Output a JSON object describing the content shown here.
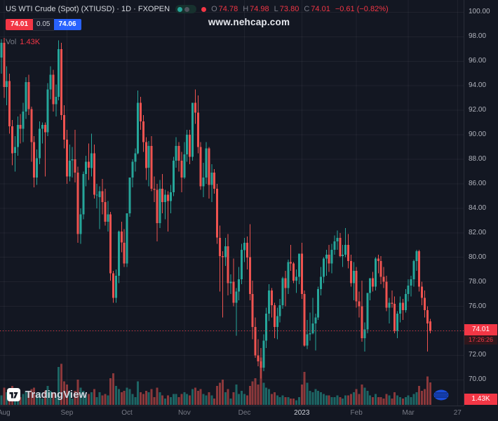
{
  "header": {
    "symbol_title": "US WTI Crude (Spot) (XTIUSD) · 1D · FXOPEN",
    "ohlc": [
      {
        "label": "O",
        "value": "74.78"
      },
      {
        "label": "H",
        "value": "74.98"
      },
      {
        "label": "L",
        "value": "73.80"
      },
      {
        "label": "C",
        "value": "74.01"
      }
    ],
    "change": "−0.61 (−0.82%)",
    "bid": "74.01",
    "spread": "0.05",
    "ask": "74.06",
    "vol_label": "Vol",
    "vol_value": "1.43K"
  },
  "watermark": "www.nehcap.com",
  "logo": {
    "text": "TradingView"
  },
  "badges": {
    "price": "74.01",
    "countdown": "17:26:26",
    "volume": "1.43K"
  },
  "colors": {
    "background": "#131722",
    "up": "#26a69a",
    "down": "#ef5350",
    "down_strong": "#f23645",
    "blue": "#2962ff",
    "axis_text": "#b0b3bc",
    "muted_text": "#787b86",
    "grid": "rgba(255,255,255,0.05)"
  },
  "chart_data": {
    "type": "candlestick+volume",
    "title": "US WTI Crude (Spot)",
    "symbol": "XTIUSD",
    "timeframe": "1D",
    "exchange": "FXOPEN",
    "last_price": 74.01,
    "last_volume_k": 1.43,
    "ylim": [
      67.9,
      101.0
    ],
    "x_slots": 170,
    "vol_max": 3.2,
    "y_gridlines": [
      {
        "v": 100,
        "t": "100.00"
      },
      {
        "v": 98,
        "t": "98.00"
      },
      {
        "v": 96,
        "t": "96.00"
      },
      {
        "v": 94,
        "t": "94.00"
      },
      {
        "v": 92,
        "t": "92.00"
      },
      {
        "v": 90,
        "t": "90.00"
      },
      {
        "v": 88,
        "t": "88.00"
      },
      {
        "v": 86,
        "t": "86.00"
      },
      {
        "v": 84,
        "t": "84.00"
      },
      {
        "v": 82,
        "t": "82.00"
      },
      {
        "v": 80,
        "t": "80.00"
      },
      {
        "v": 78,
        "t": "78.00"
      },
      {
        "v": 76,
        "t": "76.00"
      },
      {
        "v": 74,
        "t": "74.00"
      },
      {
        "v": 72,
        "t": "72.00"
      },
      {
        "v": 70,
        "t": "70.00"
      }
    ],
    "x_labels": [
      {
        "slot": 1,
        "text": "Aug"
      },
      {
        "slot": 24,
        "text": "Sep"
      },
      {
        "slot": 46,
        "text": "Oct"
      },
      {
        "slot": 67,
        "text": "Nov"
      },
      {
        "slot": 89,
        "text": "Dec"
      },
      {
        "slot": 110,
        "text": "2023",
        "strong": true
      },
      {
        "slot": 130,
        "text": "Feb"
      },
      {
        "slot": 149,
        "text": "Mar"
      },
      {
        "slot": 167,
        "text": "27"
      }
    ],
    "candles": [
      [
        96.3,
        97.8,
        95.0,
        97.5,
        0.6
      ],
      [
        97.5,
        97.9,
        93.0,
        93.9,
        1.1
      ],
      [
        93.9,
        95.6,
        92.4,
        94.4,
        0.8
      ],
      [
        94.4,
        95.0,
        90.1,
        90.7,
        1.0
      ],
      [
        90.7,
        91.2,
        87.5,
        88.5,
        1.2
      ],
      [
        88.5,
        89.9,
        87.0,
        89.0,
        0.7
      ],
      [
        89.0,
        91.5,
        88.3,
        90.8,
        0.6
      ],
      [
        90.8,
        91.7,
        89.3,
        90.5,
        0.5
      ],
      [
        90.5,
        92.6,
        89.4,
        91.9,
        0.7
      ],
      [
        91.9,
        94.7,
        91.3,
        94.3,
        0.9
      ],
      [
        94.3,
        94.9,
        91.6,
        92.1,
        0.8
      ],
      [
        92.1,
        92.3,
        87.8,
        89.4,
        1.0
      ],
      [
        89.4,
        89.9,
        85.7,
        86.5,
        1.1
      ],
      [
        86.5,
        88.8,
        85.9,
        88.1,
        0.7
      ],
      [
        88.1,
        91.1,
        87.6,
        90.5,
        0.8
      ],
      [
        90.5,
        91.0,
        89.3,
        90.8,
        0.4
      ],
      [
        90.8,
        91.0,
        86.6,
        90.2,
        0.9
      ],
      [
        90.2,
        94.2,
        89.9,
        93.7,
        1.2
      ],
      [
        93.7,
        95.6,
        92.9,
        94.9,
        0.9
      ],
      [
        94.9,
        95.3,
        91.9,
        92.5,
        0.8
      ],
      [
        92.5,
        94.1,
        91.5,
        93.1,
        0.6
      ],
      [
        93.1,
        97.7,
        92.8,
        97.0,
        2.4
      ],
      [
        97.0,
        97.5,
        91.2,
        91.6,
        2.6
      ],
      [
        91.6,
        92.4,
        88.9,
        89.6,
        1.5
      ],
      [
        89.6,
        90.4,
        86.0,
        86.6,
        1.3
      ],
      [
        86.6,
        89.2,
        86.2,
        87.9,
        0.8
      ],
      [
        87.9,
        89.0,
        86.5,
        88.0,
        0.4
      ],
      [
        88.0,
        90.4,
        86.1,
        86.9,
        0.9
      ],
      [
        86.9,
        87.4,
        81.2,
        81.9,
        1.6
      ],
      [
        81.9,
        84.0,
        81.1,
        83.5,
        1.1
      ],
      [
        83.5,
        87.0,
        83.1,
        86.8,
        0.9
      ],
      [
        86.8,
        88.3,
        85.8,
        87.8,
        0.6
      ],
      [
        87.8,
        89.3,
        86.3,
        87.3,
        0.7
      ],
      [
        87.3,
        90.1,
        86.6,
        88.5,
        0.8
      ],
      [
        88.5,
        89.2,
        84.8,
        85.1,
        1.0
      ],
      [
        85.1,
        86.0,
        84.0,
        85.1,
        0.5
      ],
      [
        84.9,
        85.8,
        82.3,
        85.4,
        0.8
      ],
      [
        85.4,
        86.4,
        83.5,
        84.5,
        0.6
      ],
      [
        84.5,
        85.6,
        82.6,
        82.9,
        0.7
      ],
      [
        82.9,
        84.6,
        82.1,
        83.5,
        0.6
      ],
      [
        83.5,
        83.7,
        78.1,
        78.7,
        1.7
      ],
      [
        78.7,
        78.9,
        76.3,
        76.7,
        2.0
      ],
      [
        76.7,
        79.0,
        76.3,
        78.5,
        1.2
      ],
      [
        78.5,
        82.2,
        77.9,
        82.1,
        1.0
      ],
      [
        82.1,
        82.9,
        80.4,
        81.2,
        0.8
      ],
      [
        81.2,
        82.3,
        79.2,
        79.5,
        0.9
      ],
      [
        79.5,
        83.6,
        79.2,
        83.6,
        1.1
      ],
      [
        83.6,
        86.5,
        83.3,
        86.5,
        1.0
      ],
      [
        86.5,
        88.0,
        85.7,
        87.8,
        0.7
      ],
      [
        87.8,
        88.9,
        87.0,
        88.5,
        0.5
      ],
      [
        88.5,
        93.6,
        88.4,
        92.6,
        1.5
      ],
      [
        92.6,
        93.1,
        90.4,
        91.1,
        0.8
      ],
      [
        91.1,
        91.6,
        88.6,
        89.4,
        0.7
      ],
      [
        89.4,
        89.8,
        86.3,
        87.3,
        0.9
      ],
      [
        87.3,
        89.5,
        85.8,
        89.1,
        0.8
      ],
      [
        89.1,
        89.9,
        85.4,
        85.6,
        1.0
      ],
      [
        85.6,
        86.6,
        84.5,
        85.5,
        0.5
      ],
      [
        85.5,
        86.0,
        81.3,
        82.8,
        1.1
      ],
      [
        82.8,
        86.3,
        82.4,
        85.6,
        0.8
      ],
      [
        85.6,
        86.8,
        83.6,
        84.5,
        0.6
      ],
      [
        84.5,
        85.5,
        83.1,
        85.1,
        0.4
      ],
      [
        85.1,
        85.4,
        82.1,
        84.6,
        0.6
      ],
      [
        84.6,
        85.9,
        83.6,
        85.3,
        0.5
      ],
      [
        85.3,
        88.2,
        85.0,
        87.9,
        0.7
      ],
      [
        87.9,
        89.8,
        87.3,
        89.1,
        0.7
      ],
      [
        89.1,
        89.4,
        87.0,
        87.9,
        0.5
      ],
      [
        87.9,
        88.6,
        85.3,
        86.5,
        0.7
      ],
      [
        86.5,
        89.4,
        86.4,
        88.4,
        0.8
      ],
      [
        88.4,
        90.4,
        87.8,
        90.0,
        0.7
      ],
      [
        90.0,
        90.4,
        87.6,
        88.2,
        0.6
      ],
      [
        88.2,
        92.6,
        87.9,
        92.6,
        1.0
      ],
      [
        92.6,
        93.7,
        90.9,
        91.8,
        1.1
      ],
      [
        91.8,
        93.2,
        88.5,
        89.0,
        0.9
      ],
      [
        89.0,
        89.4,
        85.5,
        85.8,
        1.0
      ],
      [
        85.8,
        87.7,
        84.9,
        86.5,
        0.7
      ],
      [
        86.5,
        89.4,
        86.0,
        88.9,
        0.6
      ],
      [
        88.9,
        89.0,
        84.8,
        85.9,
        0.8
      ],
      [
        85.9,
        87.6,
        84.5,
        86.9,
        0.6
      ],
      [
        86.9,
        87.2,
        85.2,
        85.6,
        0.4
      ],
      [
        85.6,
        86.0,
        81.1,
        81.6,
        1.2
      ],
      [
        81.6,
        82.6,
        77.2,
        80.1,
        1.4
      ],
      [
        80.1,
        80.5,
        75.1,
        80.0,
        1.6
      ],
      [
        80.0,
        81.6,
        79.3,
        80.9,
        0.8
      ],
      [
        80.9,
        81.9,
        76.9,
        77.9,
        1.0
      ],
      [
        77.9,
        78.6,
        77.0,
        78.0,
        0.4
      ],
      [
        78.0,
        79.9,
        76.0,
        76.3,
        0.8
      ],
      [
        76.3,
        77.5,
        73.6,
        77.2,
        1.3
      ],
      [
        77.2,
        79.2,
        76.5,
        78.2,
        0.7
      ],
      [
        78.2,
        81.1,
        77.8,
        80.6,
        0.9
      ],
      [
        80.6,
        81.6,
        79.6,
        81.2,
        0.7
      ],
      [
        81.2,
        81.7,
        79.0,
        80.0,
        0.6
      ],
      [
        80.0,
        82.7,
        76.5,
        77.0,
        1.2
      ],
      [
        77.0,
        78.1,
        73.3,
        74.3,
        1.5
      ],
      [
        74.3,
        75.1,
        71.8,
        72.0,
        1.7
      ],
      [
        72.0,
        73.3,
        71.1,
        71.5,
        1.3
      ],
      [
        71.5,
        72.6,
        70.1,
        71.0,
        3.0
      ],
      [
        71.0,
        73.7,
        70.7,
        73.2,
        1.4
      ],
      [
        73.2,
        75.9,
        72.6,
        75.4,
        1.1
      ],
      [
        75.4,
        77.8,
        74.8,
        77.3,
        1.0
      ],
      [
        77.3,
        77.5,
        75.1,
        76.1,
        0.7
      ],
      [
        76.1,
        76.3,
        73.4,
        74.3,
        0.8
      ],
      [
        74.3,
        75.9,
        73.3,
        75.2,
        0.6
      ],
      [
        75.2,
        76.6,
        74.7,
        76.1,
        0.5
      ],
      [
        76.1,
        78.4,
        75.8,
        78.3,
        0.6
      ],
      [
        78.3,
        78.9,
        76.0,
        77.5,
        0.5
      ],
      [
        77.5,
        79.8,
        77.0,
        79.6,
        0.5
      ],
      [
        79.6,
        81.0,
        78.9,
        79.5,
        0.4
      ],
      [
        79.5,
        79.6,
        77.9,
        78.1,
        0.4
      ],
      [
        78.1,
        79.0,
        77.1,
        78.4,
        0.3
      ],
      [
        78.4,
        80.3,
        77.8,
        80.3,
        0.5
      ],
      [
        80.3,
        81.2,
        76.6,
        77.0,
        1.3
      ],
      [
        77.0,
        77.3,
        72.7,
        72.8,
        2.1
      ],
      [
        72.8,
        74.9,
        72.5,
        73.7,
        1.4
      ],
      [
        73.7,
        75.5,
        73.2,
        73.8,
        0.9
      ],
      [
        73.8,
        76.7,
        73.7,
        74.6,
        0.8
      ],
      [
        74.6,
        75.4,
        72.4,
        75.1,
        1.0
      ],
      [
        75.1,
        77.6,
        74.9,
        77.4,
        0.9
      ],
      [
        77.4,
        79.2,
        76.9,
        78.4,
        0.8
      ],
      [
        78.4,
        80.0,
        77.9,
        79.9,
        0.7
      ],
      [
        79.9,
        80.6,
        78.5,
        80.2,
        0.6
      ],
      [
        80.2,
        81.0,
        78.8,
        79.5,
        0.6
      ],
      [
        79.5,
        81.1,
        78.7,
        80.6,
        0.5
      ],
      [
        80.6,
        81.8,
        80.2,
        81.3,
        0.5
      ],
      [
        81.3,
        82.2,
        80.6,
        81.6,
        0.6
      ],
      [
        81.6,
        82.0,
        80.0,
        80.1,
        0.5
      ],
      [
        80.1,
        81.0,
        79.2,
        80.2,
        0.4
      ],
      [
        80.2,
        82.4,
        80.0,
        81.0,
        0.6
      ],
      [
        81.0,
        81.9,
        79.1,
        79.7,
        0.6
      ],
      [
        79.7,
        80.2,
        77.6,
        77.9,
        0.7
      ],
      [
        77.9,
        79.6,
        76.5,
        78.9,
        0.8
      ],
      [
        78.9,
        79.2,
        75.9,
        76.4,
        1.0
      ],
      [
        76.4,
        77.2,
        75.1,
        76.0,
        0.7
      ],
      [
        76.0,
        78.1,
        73.1,
        73.4,
        1.3
      ],
      [
        73.4,
        74.7,
        72.3,
        74.1,
        1.1
      ],
      [
        74.1,
        77.1,
        73.8,
        77.1,
        0.9
      ],
      [
        77.1,
        78.3,
        76.5,
        78.3,
        0.6
      ],
      [
        78.3,
        78.8,
        77.2,
        77.6,
        0.5
      ],
      [
        77.6,
        80.0,
        77.3,
        79.9,
        0.7
      ],
      [
        79.9,
        80.2,
        78.7,
        79.7,
        0.5
      ],
      [
        79.7,
        80.1,
        77.8,
        78.4,
        0.5
      ],
      [
        78.4,
        79.2,
        77.5,
        78.0,
        0.4
      ],
      [
        78.0,
        78.5,
        75.6,
        75.9,
        0.7
      ],
      [
        75.9,
        76.7,
        74.6,
        76.3,
        0.6
      ],
      [
        76.3,
        77.3,
        75.9,
        76.2,
        0.4
      ],
      [
        76.2,
        76.8,
        73.8,
        74.0,
        0.8
      ],
      [
        74.0,
        75.6,
        73.4,
        75.4,
        0.6
      ],
      [
        75.4,
        76.8,
        74.7,
        76.3,
        0.5
      ],
      [
        76.3,
        76.6,
        74.9,
        75.7,
        0.4
      ],
      [
        75.7,
        77.4,
        75.5,
        77.0,
        0.5
      ],
      [
        77.0,
        78.2,
        76.4,
        77.7,
        0.6
      ],
      [
        77.7,
        78.5,
        76.8,
        78.2,
        0.5
      ],
      [
        78.2,
        79.8,
        77.6,
        79.7,
        0.7
      ],
      [
        79.7,
        80.6,
        78.9,
        80.5,
        0.8
      ],
      [
        80.5,
        80.6,
        77.2,
        77.6,
        1.2
      ],
      [
        77.6,
        78.0,
        76.1,
        76.7,
        0.9
      ],
      [
        76.7,
        77.3,
        75.1,
        75.7,
        1.0
      ],
      [
        75.7,
        76.0,
        72.3,
        74.6,
        1.8
      ],
      [
        74.78,
        74.98,
        73.8,
        74.01,
        1.43
      ]
    ]
  }
}
